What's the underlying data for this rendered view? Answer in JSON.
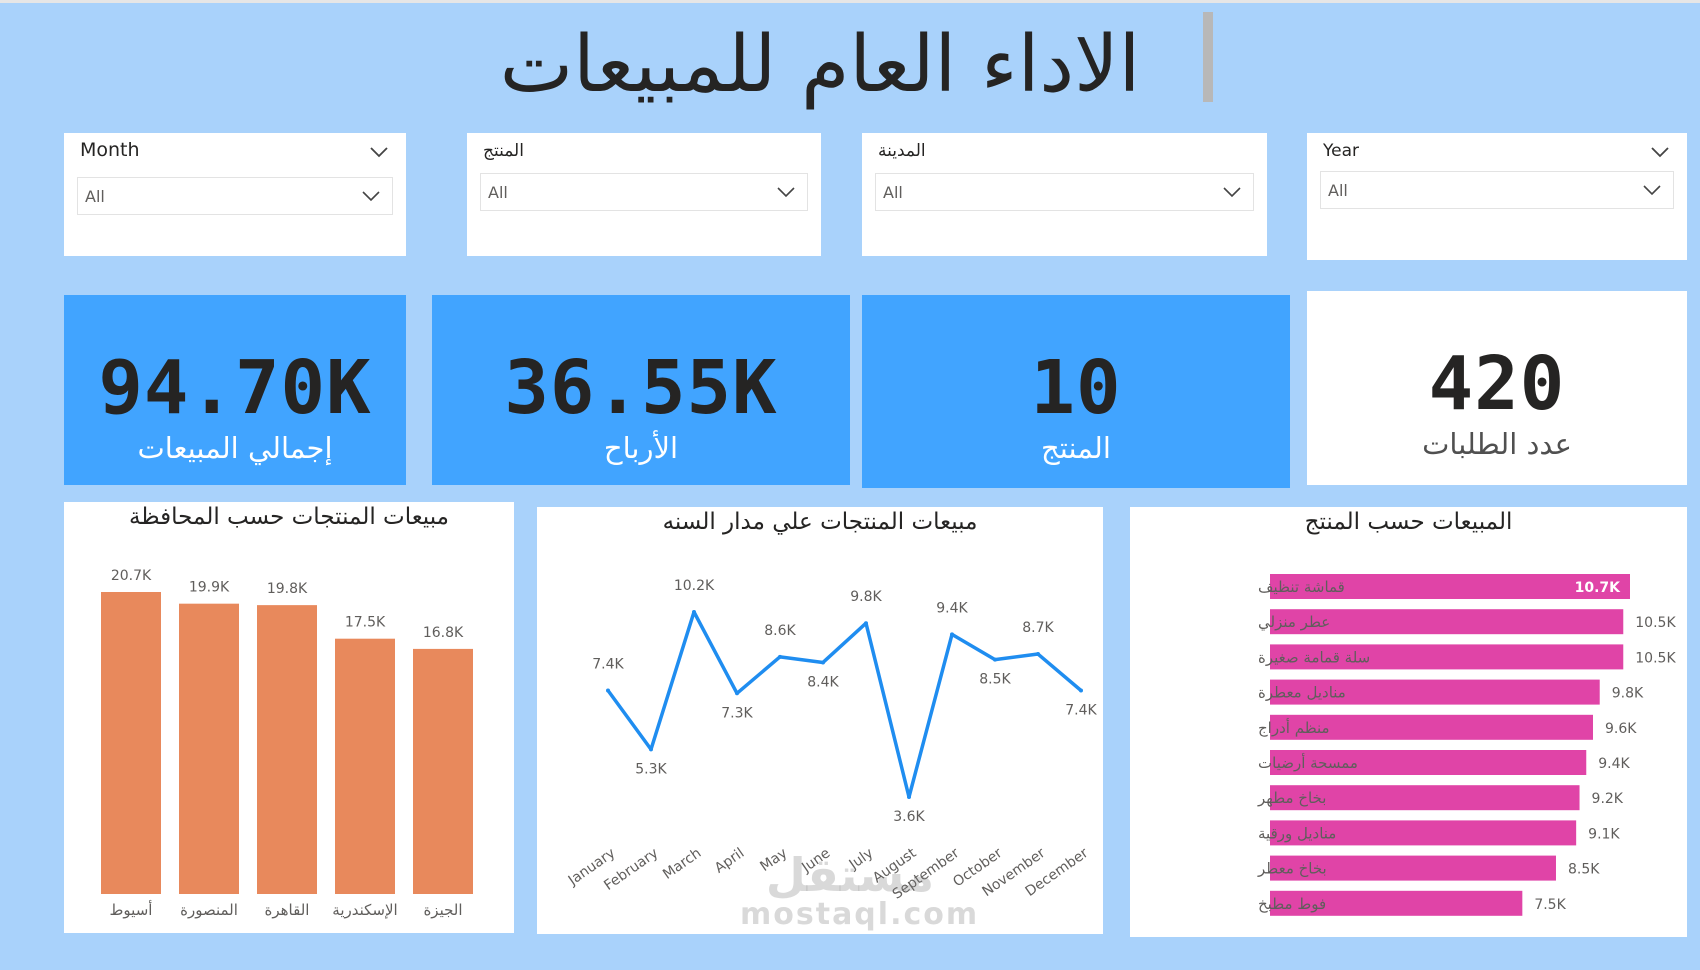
{
  "dashboard_title": "الاداء العام للمبيعات",
  "slicers": [
    {
      "key": "month",
      "label": "Month",
      "value": "All"
    },
    {
      "key": "product",
      "label": "المنتج",
      "value": "All"
    },
    {
      "key": "city",
      "label": "المدينة",
      "value": "All"
    },
    {
      "key": "year",
      "label": "Year",
      "value": "All"
    }
  ],
  "kpis": {
    "total_sales": {
      "value": "94.70K",
      "label": "إجمالي المبيعات"
    },
    "profit": {
      "value": "36.55K",
      "label": "الأرباح"
    },
    "products": {
      "value": "10",
      "label": "المنتج"
    },
    "orders": {
      "value": "420",
      "label": "عدد الطلبات"
    }
  },
  "colors": {
    "background": "#a9d2fb",
    "kpi_blue": "#41a4ff",
    "bar_orange": "#e8895c",
    "line_blue": "#1f8df0",
    "bar_pink": "#e044a7"
  },
  "chart_data": [
    {
      "type": "bar",
      "title": "مبيعات المنتجات حسب المحافظة",
      "categories": [
        "أسيوط",
        "المنصورة",
        "القاهرة",
        "الإسكندرية",
        "الجيزة"
      ],
      "values": [
        20.7,
        19.9,
        19.8,
        17.5,
        16.8
      ],
      "labels": [
        "20.7K",
        "19.9K",
        "19.8K",
        "17.5K",
        "16.8K"
      ],
      "ylim": [
        0,
        20.7
      ],
      "xlabel": "",
      "ylabel": ""
    },
    {
      "type": "line",
      "title": "مبيعات المنتجات علي مدار السنه",
      "categories": [
        "January",
        "February",
        "March",
        "April",
        "May",
        "June",
        "July",
        "August",
        "September",
        "October",
        "November",
        "December"
      ],
      "values": [
        7.4,
        5.3,
        10.2,
        7.3,
        8.6,
        8.4,
        9.8,
        3.6,
        9.4,
        8.5,
        8.7,
        7.4
      ],
      "labels": [
        "7.4K",
        "5.3K",
        "10.2K",
        "7.3K",
        "8.6K",
        "8.4K",
        "9.8K",
        "3.6K",
        "9.4K",
        "8.5K",
        "8.7K",
        "7.4K"
      ],
      "ylim": [
        3.6,
        10.2
      ],
      "xlabel": "",
      "ylabel": ""
    },
    {
      "type": "bar",
      "orientation": "horizontal",
      "title": "المبيعات حسب المنتج",
      "categories": [
        "قماشة تنظيف",
        "عطر منزلي",
        "سلة قمامة صغيرة",
        "مناديل معطرة",
        "منظم أدراج",
        "ممسحة أرضيات",
        "بخاخ مطهر",
        "مناديل ورقية",
        "بخاخ معطر",
        "فوط مطبخ"
      ],
      "values": [
        10.7,
        10.5,
        10.5,
        9.8,
        9.6,
        9.4,
        9.2,
        9.1,
        8.5,
        7.5
      ],
      "labels": [
        "10.7K",
        "10.5K",
        "10.5K",
        "9.8K",
        "9.6K",
        "9.4K",
        "9.2K",
        "9.1K",
        "8.5K",
        "7.5K"
      ],
      "xlim": [
        0,
        10.7
      ],
      "xlabel": "",
      "ylabel": ""
    }
  ],
  "watermark": {
    "arabic": "مستقل",
    "latin": "mostaql.com"
  }
}
